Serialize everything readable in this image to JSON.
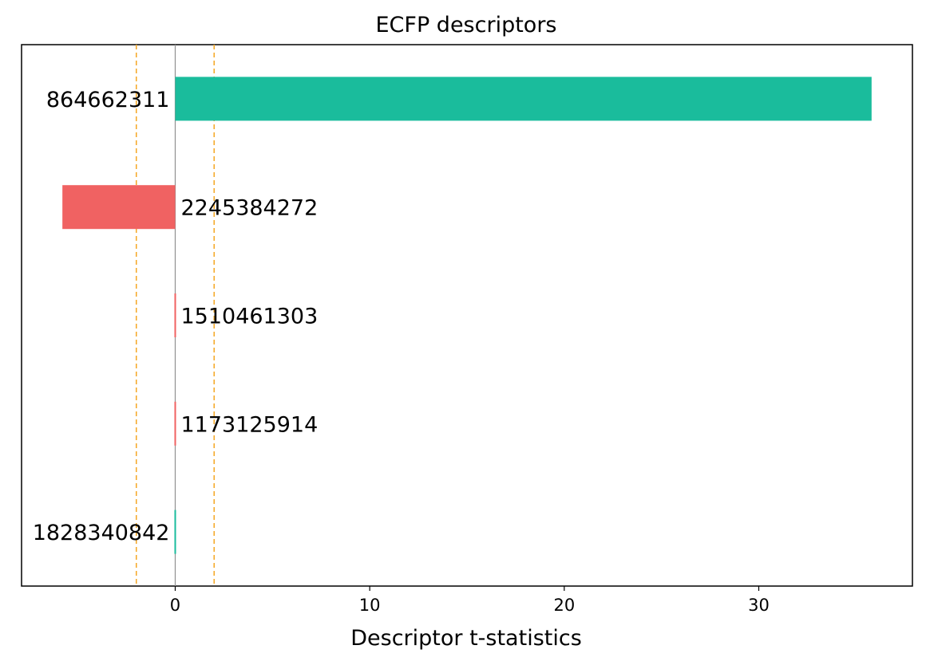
{
  "chart_data": {
    "type": "bar",
    "orientation": "horizontal",
    "title": "ECFP descriptors",
    "xlabel": "Descriptor t-statistics",
    "ylabel": "",
    "xlim": [
      -7.9,
      37.9
    ],
    "xticks": [
      0,
      10,
      20,
      30
    ],
    "threshold_lines": [
      -2.0,
      2.0
    ],
    "zero_line": 0,
    "grid": false,
    "categories": [
      "864662311",
      "2245384272",
      "1510461303",
      "1173125914",
      "1828340842"
    ],
    "values": [
      35.8,
      -5.8,
      -0.05,
      -0.05,
      0.04
    ],
    "colors": {
      "positive": "#1abc9c",
      "negative": "#f06262",
      "threshold": "#f5a623",
      "zero_line": "#909090",
      "frame": "#000000"
    }
  }
}
